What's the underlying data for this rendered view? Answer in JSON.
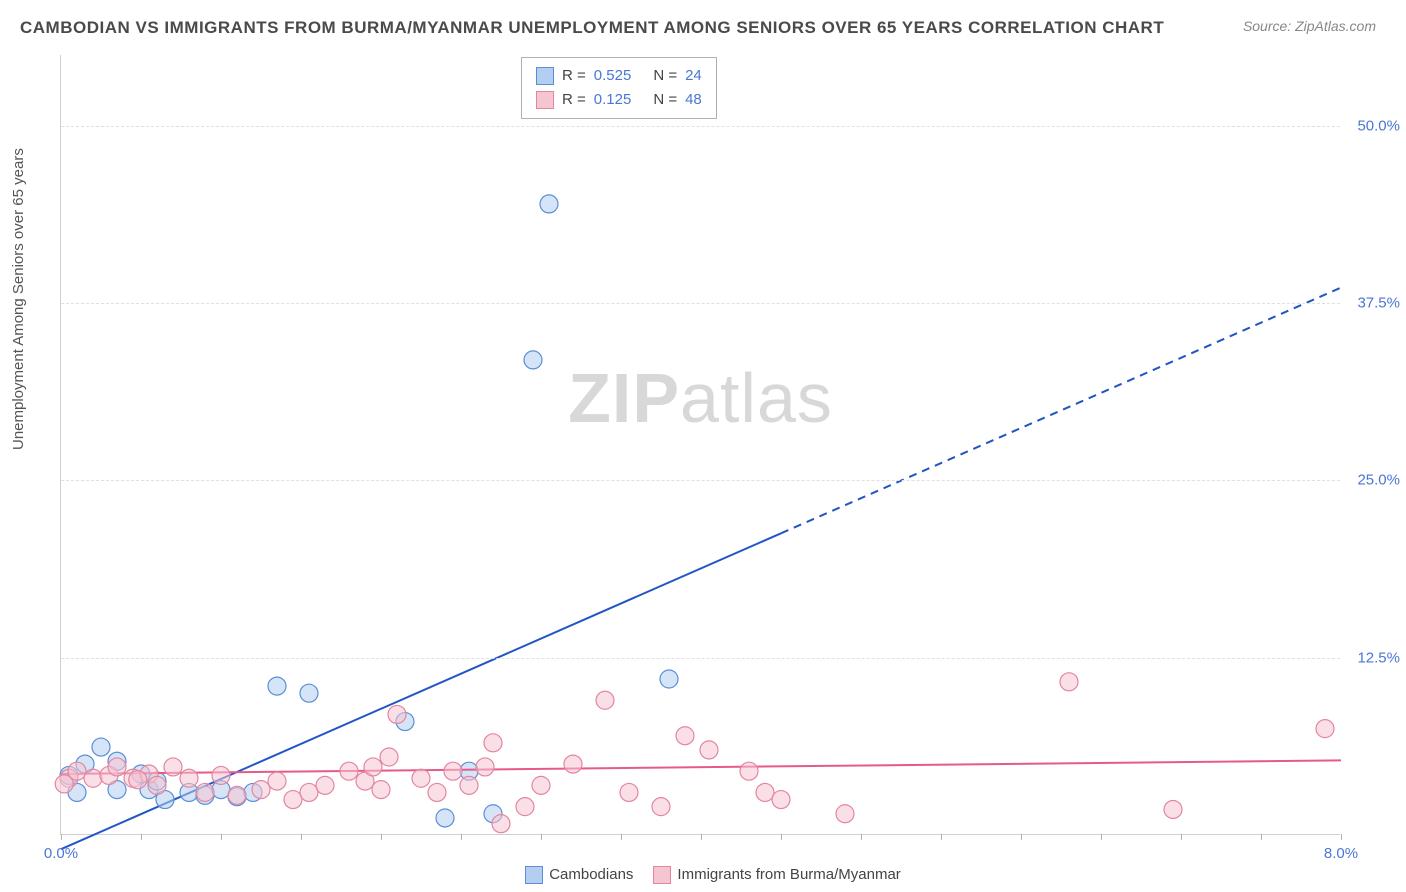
{
  "title": "CAMBODIAN VS IMMIGRANTS FROM BURMA/MYANMAR UNEMPLOYMENT AMONG SENIORS OVER 65 YEARS CORRELATION CHART",
  "source": "Source: ZipAtlas.com",
  "ylabel": "Unemployment Among Seniors over 65 years",
  "watermark_a": "ZIP",
  "watermark_b": "atlas",
  "chart": {
    "type": "scatter",
    "xlim": [
      0,
      8
    ],
    "ylim": [
      0,
      55
    ],
    "x_tick_start": 0,
    "x_tick_end": 8,
    "x_tick_step": 0.5,
    "x_label_start": "0.0%",
    "x_label_end": "8.0%",
    "y_ticks": [
      12.5,
      25.0,
      37.5,
      50.0
    ],
    "y_tick_labels": [
      "12.5%",
      "25.0%",
      "37.5%",
      "50.0%"
    ],
    "grid_color": "#e0e0e0",
    "background_color": "#ffffff",
    "marker_radius": 9,
    "marker_stroke_width": 1.2,
    "series": [
      {
        "name": "Cambodians",
        "fill": "#b3cef0",
        "stroke": "#5a8fd6",
        "fill_opacity": 0.55,
        "R": "0.525",
        "N": "24",
        "trend": {
          "slope": 4.95,
          "intercept": -1.0,
          "solid_until_x": 4.5,
          "color": "#2256c4",
          "width": 2
        },
        "points": [
          [
            0.05,
            4.2
          ],
          [
            0.1,
            3.0
          ],
          [
            0.15,
            5.0
          ],
          [
            0.25,
            6.2
          ],
          [
            0.35,
            5.2
          ],
          [
            0.35,
            3.2
          ],
          [
            0.55,
            3.2
          ],
          [
            0.6,
            3.8
          ],
          [
            0.65,
            2.5
          ],
          [
            0.8,
            3.0
          ],
          [
            0.9,
            2.8
          ],
          [
            1.0,
            3.2
          ],
          [
            1.1,
            2.7
          ],
          [
            1.2,
            3.0
          ],
          [
            1.35,
            10.5
          ],
          [
            1.55,
            10.0
          ],
          [
            2.15,
            8.0
          ],
          [
            2.4,
            1.2
          ],
          [
            2.55,
            4.5
          ],
          [
            2.7,
            1.5
          ],
          [
            2.95,
            33.5
          ],
          [
            3.05,
            44.5
          ],
          [
            3.8,
            11.0
          ],
          [
            0.5,
            4.3
          ]
        ]
      },
      {
        "name": "Immigrants from Burma/Myanmar",
        "fill": "#f5c5d1",
        "stroke": "#e386a0",
        "fill_opacity": 0.55,
        "R": "0.125",
        "N": "48",
        "trend": {
          "slope": 0.12,
          "intercept": 4.3,
          "solid_until_x": 8.0,
          "color": "#e65a8a",
          "width": 2
        },
        "points": [
          [
            0.05,
            4.0
          ],
          [
            0.1,
            4.5
          ],
          [
            0.2,
            4.0
          ],
          [
            0.3,
            4.2
          ],
          [
            0.35,
            4.8
          ],
          [
            0.45,
            4.0
          ],
          [
            0.55,
            4.3
          ],
          [
            0.6,
            3.5
          ],
          [
            0.7,
            4.8
          ],
          [
            0.8,
            4.0
          ],
          [
            0.9,
            3.0
          ],
          [
            1.0,
            4.2
          ],
          [
            1.1,
            2.8
          ],
          [
            1.25,
            3.2
          ],
          [
            1.35,
            3.8
          ],
          [
            1.45,
            2.5
          ],
          [
            1.55,
            3.0
          ],
          [
            1.65,
            3.5
          ],
          [
            1.8,
            4.5
          ],
          [
            1.9,
            3.8
          ],
          [
            1.95,
            4.8
          ],
          [
            2.0,
            3.2
          ],
          [
            2.05,
            5.5
          ],
          [
            2.1,
            8.5
          ],
          [
            2.25,
            4.0
          ],
          [
            2.35,
            3.0
          ],
          [
            2.45,
            4.5
          ],
          [
            2.55,
            3.5
          ],
          [
            2.65,
            4.8
          ],
          [
            2.7,
            6.5
          ],
          [
            2.75,
            0.8
          ],
          [
            2.9,
            2.0
          ],
          [
            3.0,
            3.5
          ],
          [
            3.2,
            5.0
          ],
          [
            3.4,
            9.5
          ],
          [
            3.55,
            3.0
          ],
          [
            3.75,
            2.0
          ],
          [
            3.9,
            7.0
          ],
          [
            4.05,
            6.0
          ],
          [
            4.3,
            4.5
          ],
          [
            4.4,
            3.0
          ],
          [
            4.5,
            2.5
          ],
          [
            4.9,
            1.5
          ],
          [
            6.3,
            10.8
          ],
          [
            6.95,
            1.8
          ],
          [
            7.9,
            7.5
          ],
          [
            0.02,
            3.6
          ],
          [
            0.48,
            3.9
          ]
        ]
      }
    ],
    "legend_bottom": [
      {
        "label": "Cambodians",
        "fill": "#b3cef0",
        "stroke": "#5a8fd6"
      },
      {
        "label": "Immigrants from Burma/Myanmar",
        "fill": "#f5c5d1",
        "stroke": "#e386a0"
      }
    ]
  }
}
